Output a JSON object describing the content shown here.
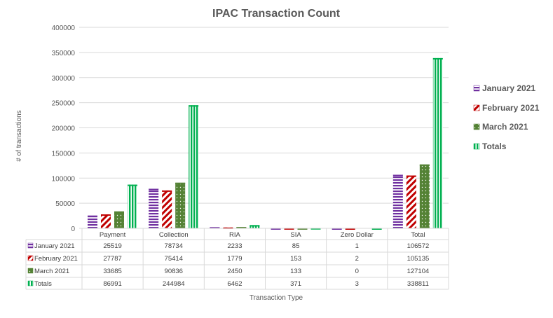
{
  "chart_data": {
    "type": "bar",
    "title": "IPAC Transaction Count",
    "xlabel": "Transaction Type",
    "ylabel": "# of transactions",
    "ylim": [
      0,
      400000
    ],
    "yticks": [
      0,
      50000,
      100000,
      150000,
      200000,
      250000,
      300000,
      350000,
      400000
    ],
    "grid": true,
    "legend_position": "right",
    "categories": [
      "Payment",
      "Collection",
      "RIA",
      "SIA",
      "Zero Dollar",
      "Total"
    ],
    "series": [
      {
        "name": "January 2021",
        "color": "#7030a0",
        "pattern": "horizontal-stripes",
        "values": [
          25519,
          78734,
          2233,
          85,
          1,
          106572
        ]
      },
      {
        "name": "February 2021",
        "color": "#c00000",
        "pattern": "diagonal-stripes",
        "values": [
          27787,
          75414,
          1779,
          153,
          2,
          105135
        ]
      },
      {
        "name": "March 2021",
        "color": "#548235",
        "pattern": "dots",
        "values": [
          33685,
          90836,
          2450,
          133,
          0,
          127104
        ]
      },
      {
        "name": "Totals",
        "color": "#00b050",
        "pattern": "vertical-stripes",
        "values": [
          86991,
          244984,
          6462,
          371,
          3,
          338811
        ]
      }
    ],
    "data_table": true
  }
}
